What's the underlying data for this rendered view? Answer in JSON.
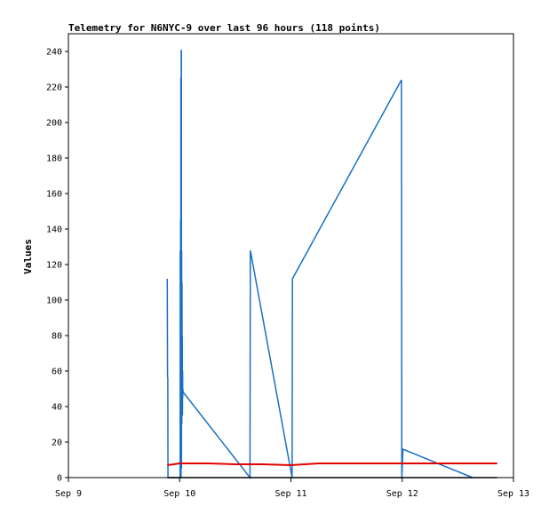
{
  "chart_data": {
    "type": "line",
    "title": "Telemetry for N6NYC-9 over last 96 hours (118 points)",
    "xlabel": "",
    "ylabel": "Values",
    "x_ticks": [
      "Sep 9",
      "Sep 10",
      "Sep 11",
      "Sep 12",
      "Sep 13"
    ],
    "y_ticks": [
      0,
      20,
      40,
      60,
      80,
      100,
      120,
      140,
      160,
      180,
      200,
      220,
      240
    ],
    "xlim": [
      "2023-09-09T00:00",
      "2023-09-13T00:00"
    ],
    "ylim": [
      0,
      250
    ],
    "grid": false,
    "series": [
      {
        "color": "#1a6fc4",
        "x": [
          "2023-09-09T21:20",
          "2023-09-09T21:23",
          "2023-09-09T21:26",
          "2023-09-09T21:29",
          "2023-09-10T00:06",
          "2023-09-10T00:08",
          "2023-09-10T00:10",
          "2023-09-10T00:12",
          "2023-09-10T00:14",
          "2023-09-10T00:16",
          "2023-09-10T00:18",
          "2023-09-10T00:20",
          "2023-09-10T00:22",
          "2023-09-10T00:24",
          "2023-09-10T00:26",
          "2023-09-10T00:28",
          "2023-09-10T00:30",
          "2023-09-10T00:32",
          "2023-09-10T00:34",
          "2023-09-10T00:36",
          "2023-09-10T00:38",
          "2023-09-10T00:40",
          "2023-09-10T00:42",
          "2023-09-10T00:44",
          "2023-09-10T00:46",
          "2023-09-10T00:48",
          "2023-09-10T15:10",
          "2023-09-10T15:15",
          "2023-09-11T00:15",
          "2023-09-11T00:20",
          "2023-09-11T23:50",
          "2023-09-11T23:55",
          "2023-09-12T00:10",
          "2023-09-12T15:10"
        ],
        "y": [
          112,
          57,
          56,
          0,
          0,
          128,
          3,
          145,
          2,
          225,
          0,
          241,
          240,
          5,
          128,
          30,
          110,
          40,
          80,
          35,
          60,
          45,
          50,
          48,
          48,
          48,
          0,
          128,
          0,
          112,
          224,
          0,
          16,
          0
        ]
      },
      {
        "color": "#e00000",
        "x": [
          "2023-09-09T21:20",
          "2023-09-10T00:00",
          "2023-09-10T06:00",
          "2023-09-10T12:00",
          "2023-09-10T18:00",
          "2023-09-11T00:00",
          "2023-09-11T06:00",
          "2023-09-11T12:00",
          "2023-09-11T18:00",
          "2023-09-12T00:00",
          "2023-09-12T06:00",
          "2023-09-12T12:00",
          "2023-09-12T20:30"
        ],
        "y": [
          7,
          8,
          8,
          7.5,
          7.5,
          7,
          8,
          8,
          8,
          8,
          8,
          8,
          8
        ]
      },
      {
        "color": "#000000",
        "x": [
          "2023-09-09T21:20",
          "2023-09-12T20:30"
        ],
        "y": [
          0,
          0
        ]
      }
    ]
  }
}
